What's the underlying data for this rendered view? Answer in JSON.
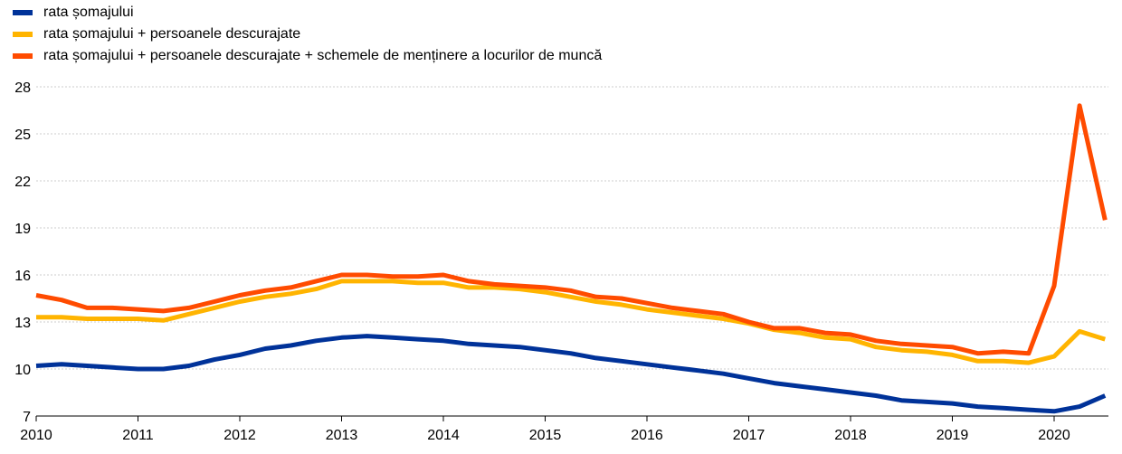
{
  "chart_data": {
    "type": "line",
    "x_tick_labels": [
      "2010",
      "2011",
      "2012",
      "2013",
      "2014",
      "2015",
      "2016",
      "2017",
      "2018",
      "2019",
      "2020"
    ],
    "y_tick_labels": [
      "7",
      "10",
      "13",
      "16",
      "19",
      "22",
      "25",
      "28"
    ],
    "xlim": [
      2010,
      2020.5
    ],
    "ylim": [
      7,
      28
    ],
    "grid": true,
    "legend_position": "top-left",
    "series": [
      {
        "name": "rata șomajului",
        "color": "#003299",
        "x": [
          2010,
          2010.25,
          2010.5,
          2010.75,
          2011,
          2011.25,
          2011.5,
          2011.75,
          2012,
          2012.25,
          2012.5,
          2012.75,
          2013,
          2013.25,
          2013.5,
          2013.75,
          2014,
          2014.25,
          2014.5,
          2014.75,
          2015,
          2015.25,
          2015.5,
          2015.75,
          2016,
          2016.25,
          2016.5,
          2016.75,
          2017,
          2017.25,
          2017.5,
          2017.75,
          2018,
          2018.25,
          2018.5,
          2018.75,
          2019,
          2019.25,
          2019.5,
          2019.75,
          2020,
          2020.25,
          2020.5
        ],
        "y": [
          10.2,
          10.3,
          10.2,
          10.1,
          10.0,
          10.0,
          10.2,
          10.6,
          10.9,
          11.3,
          11.5,
          11.8,
          12.0,
          12.1,
          12.0,
          11.9,
          11.8,
          11.6,
          11.5,
          11.4,
          11.2,
          11.0,
          10.7,
          10.5,
          10.3,
          10.1,
          9.9,
          9.7,
          9.4,
          9.1,
          8.9,
          8.7,
          8.5,
          8.3,
          8.0,
          7.9,
          7.8,
          7.6,
          7.5,
          7.4,
          7.3,
          7.6,
          8.3
        ]
      },
      {
        "name": "rata șomajului + persoanele descurajate",
        "color": "#FFB400",
        "x": [
          2010,
          2010.25,
          2010.5,
          2010.75,
          2011,
          2011.25,
          2011.5,
          2011.75,
          2012,
          2012.25,
          2012.5,
          2012.75,
          2013,
          2013.25,
          2013.5,
          2013.75,
          2014,
          2014.25,
          2014.5,
          2014.75,
          2015,
          2015.25,
          2015.5,
          2015.75,
          2016,
          2016.25,
          2016.5,
          2016.75,
          2017,
          2017.25,
          2017.5,
          2017.75,
          2018,
          2018.25,
          2018.5,
          2018.75,
          2019,
          2019.25,
          2019.5,
          2019.75,
          2020,
          2020.25,
          2020.5
        ],
        "y": [
          13.3,
          13.3,
          13.2,
          13.2,
          13.2,
          13.1,
          13.5,
          13.9,
          14.3,
          14.6,
          14.8,
          15.1,
          15.6,
          15.6,
          15.6,
          15.5,
          15.5,
          15.2,
          15.2,
          15.1,
          14.9,
          14.6,
          14.3,
          14.1,
          13.8,
          13.6,
          13.4,
          13.2,
          12.9,
          12.5,
          12.3,
          12.0,
          11.9,
          11.4,
          11.2,
          11.1,
          10.9,
          10.5,
          10.5,
          10.4,
          10.8,
          12.4,
          11.9
        ]
      },
      {
        "name": "rata șomajului + persoanele descurajate + schemele de menținere a locurilor de muncă",
        "color": "#FF4B00",
        "x": [
          2010,
          2010.25,
          2010.5,
          2010.75,
          2011,
          2011.25,
          2011.5,
          2011.75,
          2012,
          2012.25,
          2012.5,
          2012.75,
          2013,
          2013.25,
          2013.5,
          2013.75,
          2014,
          2014.25,
          2014.5,
          2014.75,
          2015,
          2015.25,
          2015.5,
          2015.75,
          2016,
          2016.25,
          2016.5,
          2016.75,
          2017,
          2017.25,
          2017.5,
          2017.75,
          2018,
          2018.25,
          2018.5,
          2018.75,
          2019,
          2019.25,
          2019.5,
          2019.75,
          2020,
          2020.25,
          2020.5
        ],
        "y": [
          14.7,
          14.4,
          13.9,
          13.9,
          13.8,
          13.7,
          13.9,
          14.3,
          14.7,
          15.0,
          15.2,
          15.6,
          16.0,
          16.0,
          15.9,
          15.9,
          16.0,
          15.6,
          15.4,
          15.3,
          15.2,
          15.0,
          14.6,
          14.5,
          14.2,
          13.9,
          13.7,
          13.5,
          13.0,
          12.6,
          12.6,
          12.3,
          12.2,
          11.8,
          11.6,
          11.5,
          11.4,
          11.0,
          11.1,
          11.0,
          15.3,
          26.8,
          19.5
        ]
      }
    ]
  }
}
